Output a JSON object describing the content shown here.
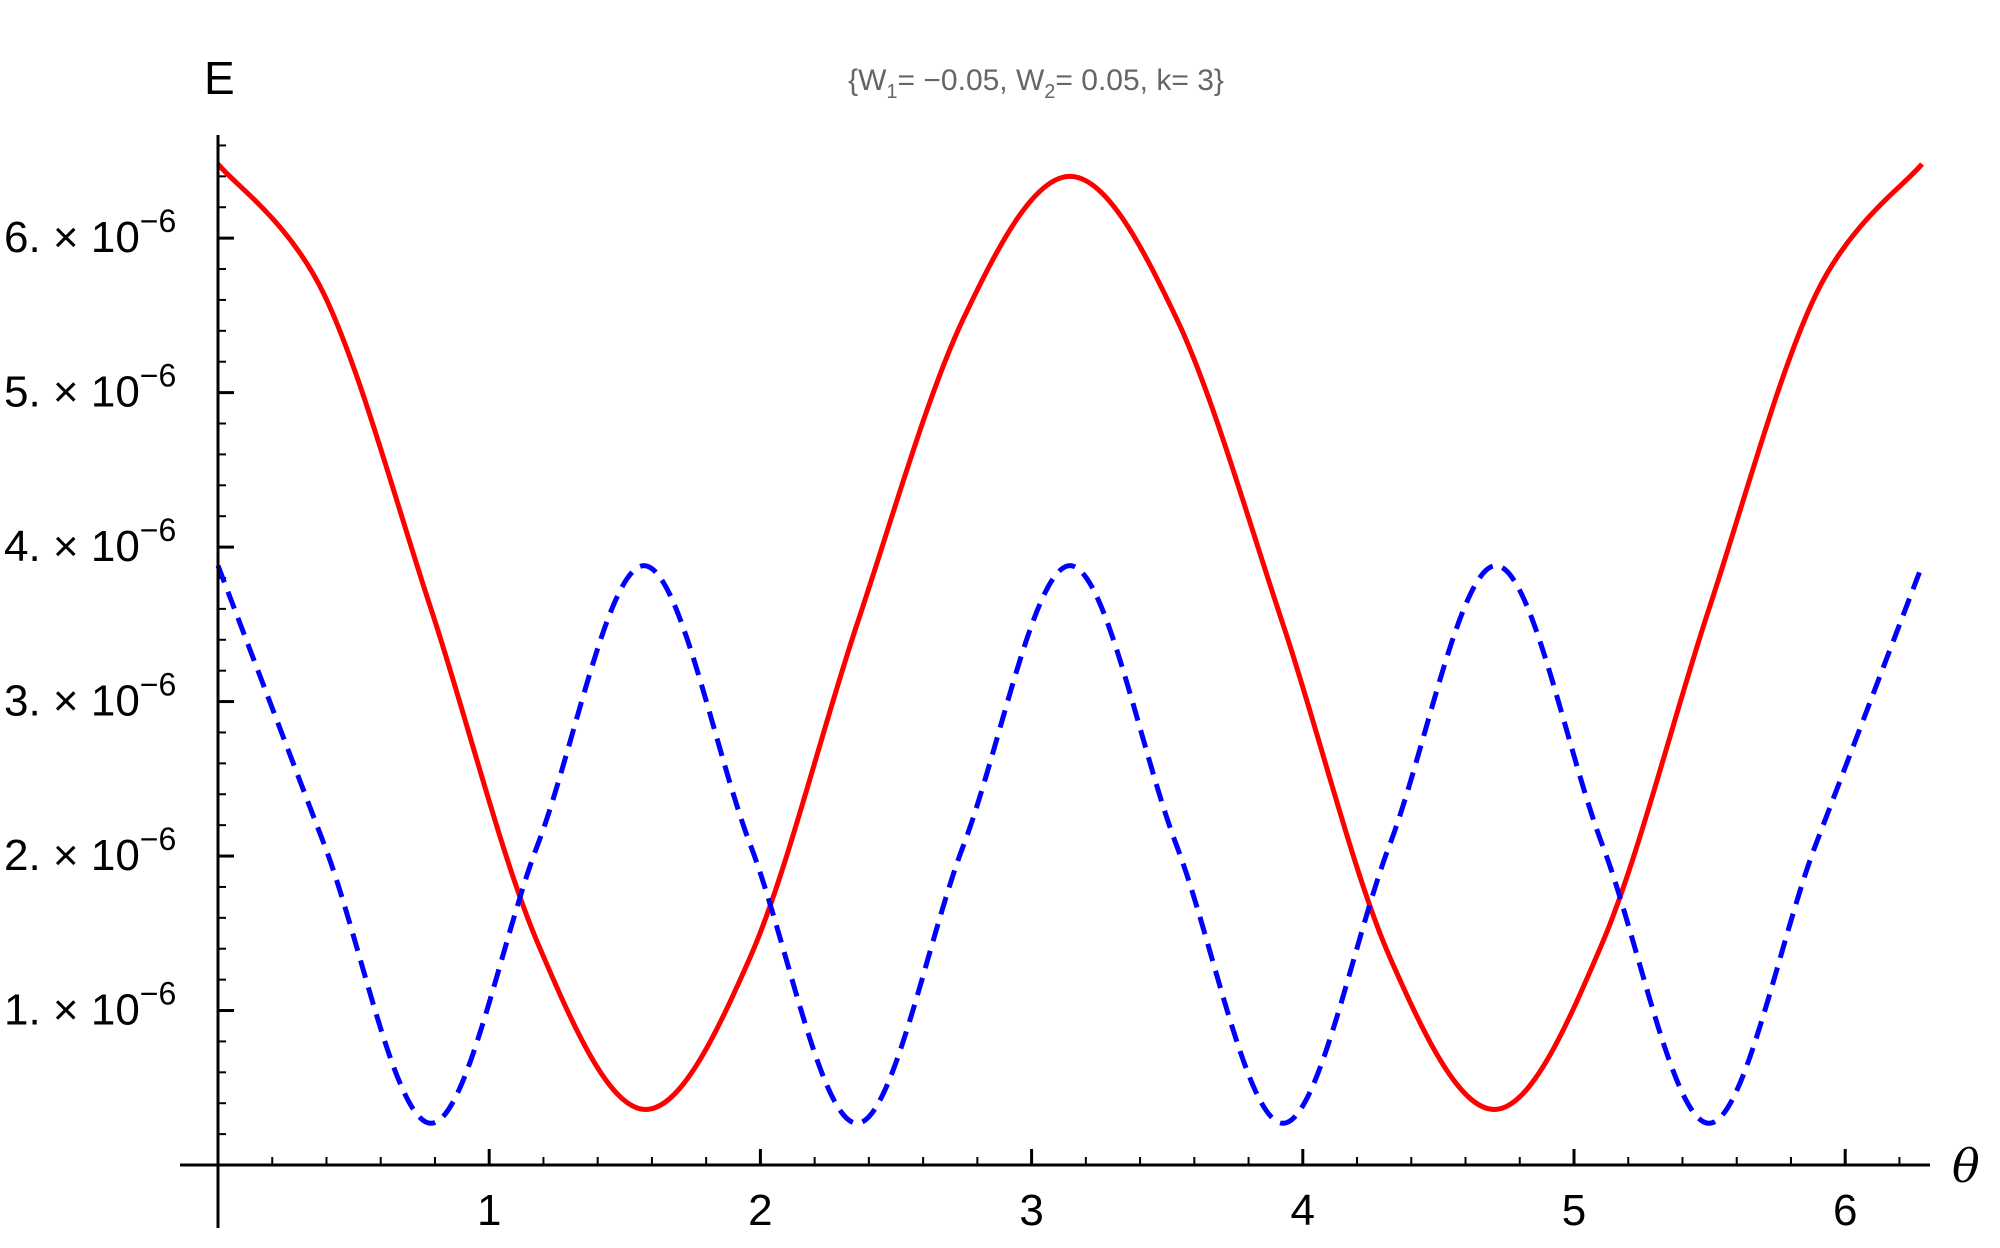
{
  "chart_data": {
    "type": "line",
    "title": "{W₁= −0.05, W₂= 0.05, k= 3}",
    "title_parts": {
      "open": "{W",
      "sub1": "1",
      "mid1": "= −0.05, W",
      "sub2": "2",
      "mid2": "= 0.05, k= 3}"
    },
    "xlabel": "θ",
    "ylabel": "E",
    "xlim": [
      0,
      6.2832
    ],
    "ylim": [
      0,
      6.7e-06
    ],
    "x_ticks": [
      {
        "value": 1,
        "label": "1"
      },
      {
        "value": 2,
        "label": "2"
      },
      {
        "value": 3,
        "label": "3"
      },
      {
        "value": 4,
        "label": "4"
      },
      {
        "value": 5,
        "label": "5"
      },
      {
        "value": 6,
        "label": "6"
      }
    ],
    "y_ticks": [
      {
        "value": 1e-06,
        "mantissa": "1.",
        "times": "×",
        "base": "10",
        "exponent": "−6"
      },
      {
        "value": 2e-06,
        "mantissa": "2.",
        "times": "×",
        "base": "10",
        "exponent": "−6"
      },
      {
        "value": 3e-06,
        "mantissa": "3.",
        "times": "×",
        "base": "10",
        "exponent": "−6"
      },
      {
        "value": 4e-06,
        "mantissa": "4.",
        "times": "×",
        "base": "10",
        "exponent": "−6"
      },
      {
        "value": 5e-06,
        "mantissa": "5.",
        "times": "×",
        "base": "10",
        "exponent": "−6"
      },
      {
        "value": 6e-06,
        "mantissa": "6.",
        "times": "×",
        "base": "10",
        "exponent": "−6"
      }
    ],
    "series": [
      {
        "style": "solid",
        "color": "#ff0000",
        "x": [
          0,
          0.3927,
          0.7854,
          1.1781,
          1.5708,
          1.9635,
          2.3562,
          2.7489,
          3.1416,
          3.5343,
          3.927,
          4.3197,
          4.7124,
          5.1051,
          5.4978,
          5.8905,
          6.2832
        ],
        "y": [
          6.48e-06,
          5.63e-06,
          3.6e-06,
          1.44e-06,
          3.6e-07,
          1.35e-06,
          3.5e-06,
          5.48e-06,
          6.4e-06,
          5.48e-06,
          3.5e-06,
          1.35e-06,
          3.6e-07,
          1.44e-06,
          3.6e-06,
          5.63e-06,
          6.48e-06
        ]
      },
      {
        "style": "dashed",
        "color": "#0000ff",
        "x": [
          0,
          0.3927,
          0.7854,
          1.1781,
          1.5708,
          1.9635,
          2.3562,
          2.7489,
          3.1416,
          3.5343,
          3.927,
          4.3197,
          4.7124,
          5.1051,
          5.4978,
          5.8905,
          6.2832
        ],
        "y": [
          3.88e-06,
          2.07e-06,
          2.7e-07,
          2.07e-06,
          3.88e-06,
          2.07e-06,
          2.7e-07,
          2.07e-06,
          3.88e-06,
          2.07e-06,
          2.7e-07,
          2.07e-06,
          3.88e-06,
          2.07e-06,
          2.7e-07,
          2.07e-06,
          3.88e-06
        ]
      }
    ]
  }
}
